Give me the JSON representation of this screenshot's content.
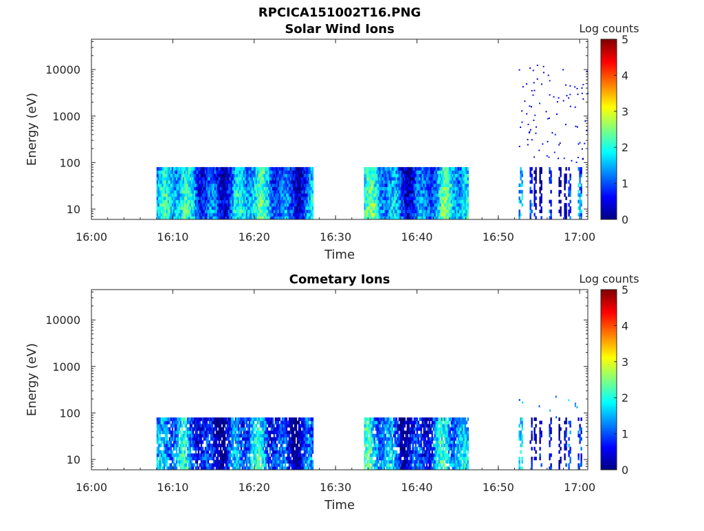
{
  "figure": {
    "title": "RPCICA151002T16.PNG"
  },
  "chart_data": [
    {
      "type": "heatmap",
      "title": "Solar Wind Ions",
      "xlabel": "Time",
      "ylabel": "Energy (eV)",
      "x_ticks": [
        "16:00",
        "16:10",
        "16:20",
        "16:30",
        "16:40",
        "16:50",
        "17:00"
      ],
      "x_range_minutes": [
        0,
        61
      ],
      "y_scale": "log",
      "y_ticks": [
        "10",
        "100",
        "1000",
        "10000"
      ],
      "y_range": [
        6,
        45000
      ],
      "colorbar": {
        "label": "Log counts",
        "ticks": [
          "0",
          "1",
          "2",
          "3",
          "4",
          "5"
        ],
        "range": [
          0,
          5
        ],
        "colormap": "jet"
      },
      "data_blocks": [
        {
          "start_minute": 8.0,
          "end_minute": 27.3,
          "energy_max": 80,
          "note_level_typical": 1.5
        },
        {
          "start_minute": 33.5,
          "end_minute": 46.5,
          "energy_max": 80,
          "note_level_typical": 1.5
        },
        {
          "start_minute": 52.5,
          "end_minute": 61.0,
          "energy_max": 13000,
          "note_level_typical": 1.0
        }
      ]
    },
    {
      "type": "heatmap",
      "title": "Cometary Ions",
      "xlabel": "Time",
      "ylabel": "Energy (eV)",
      "x_ticks": [
        "16:00",
        "16:10",
        "16:20",
        "16:30",
        "16:40",
        "16:50",
        "17:00"
      ],
      "x_range_minutes": [
        0,
        61
      ],
      "y_scale": "log",
      "y_ticks": [
        "10",
        "100",
        "1000",
        "10000"
      ],
      "y_range": [
        6,
        45000
      ],
      "colorbar": {
        "label": "Log counts",
        "ticks": [
          "0",
          "1",
          "2",
          "3",
          "4",
          "5"
        ],
        "range": [
          0,
          5
        ],
        "colormap": "jet"
      },
      "data_blocks": [
        {
          "start_minute": 8.0,
          "end_minute": 27.3,
          "energy_max": 80,
          "note_level_typical": 1.2
        },
        {
          "start_minute": 33.5,
          "end_minute": 46.5,
          "energy_max": 80,
          "note_level_typical": 1.3
        },
        {
          "start_minute": 52.5,
          "end_minute": 61.0,
          "energy_max": 250,
          "note_level_typical": 1.0
        }
      ]
    }
  ]
}
